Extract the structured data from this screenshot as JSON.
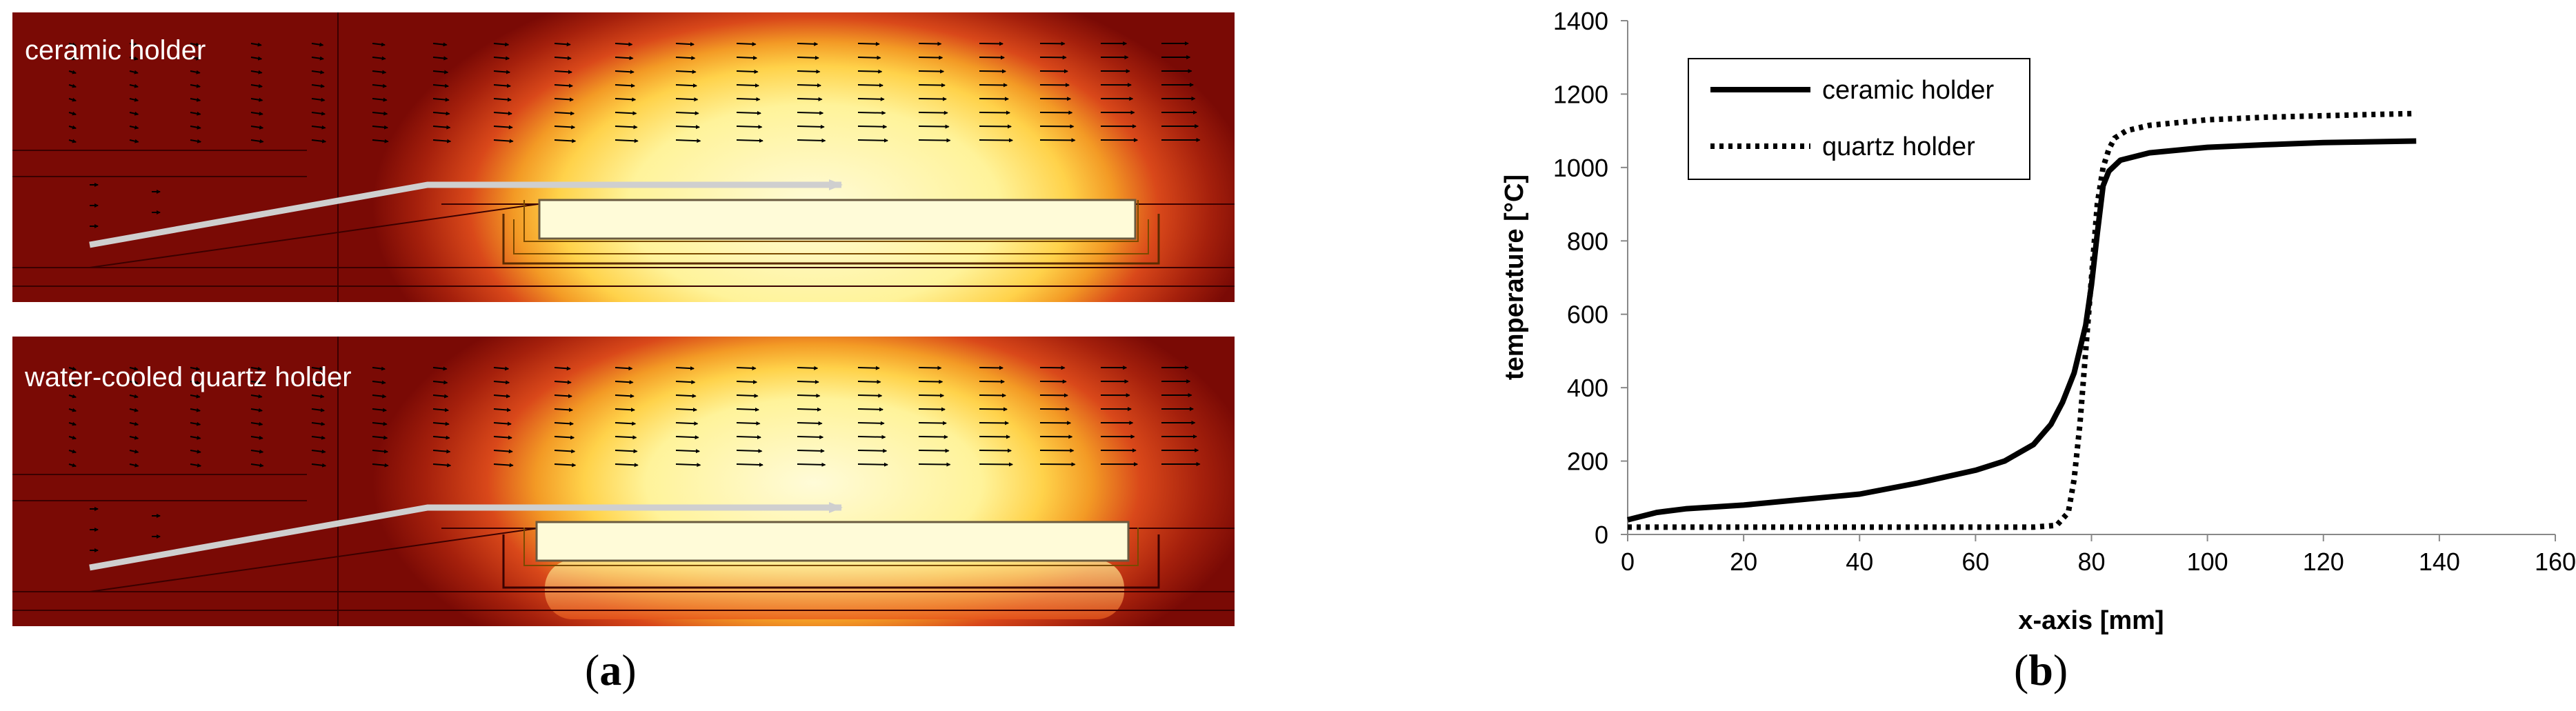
{
  "panel_a": {
    "label_open": "(",
    "label_letter": "a",
    "label_close": ")",
    "top_title": "ceramic holder",
    "bottom_title": "water-cooled quartz holder",
    "colors": {
      "dark_red": "#7a0a05",
      "orange": "#e8561a",
      "yellow": "#ffe070",
      "pale": "#fffbd8"
    }
  },
  "panel_b": {
    "label_open": "(",
    "label_letter": "b",
    "label_close": ")"
  },
  "chart_data": {
    "type": "line",
    "title": "",
    "xlabel": "x-axis [mm]",
    "ylabel": "temperature [°C]",
    "xlim": [
      0,
      160
    ],
    "ylim": [
      0,
      1400
    ],
    "xticks": [
      0,
      20,
      40,
      60,
      80,
      100,
      120,
      140,
      160
    ],
    "yticks": [
      0,
      200,
      400,
      600,
      800,
      1000,
      1200,
      1400
    ],
    "grid": false,
    "legend_position": "top-left",
    "series": [
      {
        "name": "ceramic holder",
        "style": "solid",
        "color": "#000000",
        "x": [
          0,
          5,
          10,
          20,
          30,
          40,
          50,
          60,
          65,
          70,
          73,
          75,
          77,
          79,
          80,
          81,
          82,
          83,
          85,
          90,
          100,
          110,
          120,
          136
        ],
        "y": [
          40,
          60,
          70,
          80,
          95,
          110,
          140,
          175,
          200,
          245,
          300,
          360,
          440,
          570,
          680,
          820,
          950,
          990,
          1020,
          1040,
          1055,
          1062,
          1068,
          1072
        ]
      },
      {
        "name": "quartz holder",
        "style": "dotted",
        "color": "#000000",
        "x": [
          0,
          20,
          40,
          60,
          70,
          74,
          76,
          77,
          78,
          79,
          80,
          81,
          82,
          83,
          84,
          86,
          90,
          100,
          110,
          120,
          130,
          136
        ],
        "y": [
          20,
          20,
          20,
          20,
          20,
          25,
          60,
          150,
          300,
          500,
          700,
          900,
          1000,
          1050,
          1080,
          1100,
          1115,
          1130,
          1137,
          1141,
          1145,
          1147
        ]
      }
    ]
  }
}
